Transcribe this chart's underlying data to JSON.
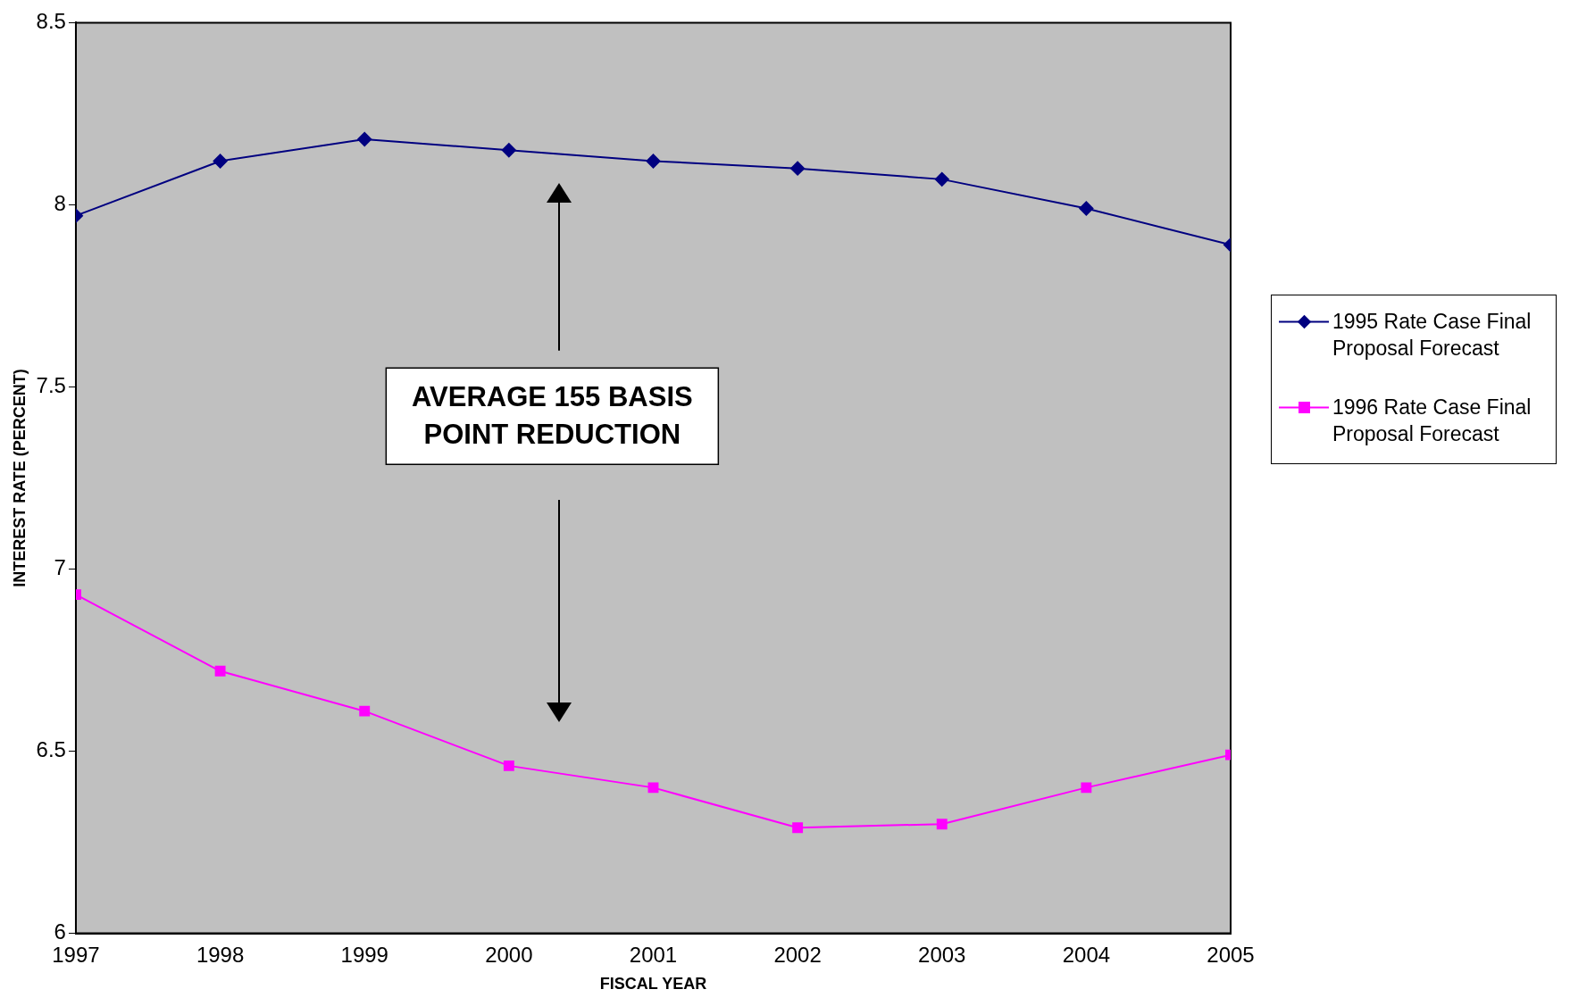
{
  "chart_data": {
    "type": "line",
    "xlabel": "FISCAL YEAR",
    "ylabel": "INTEREST RATE (PERCENT)",
    "x": [
      1997,
      1998,
      1999,
      2000,
      2001,
      2002,
      2003,
      2004,
      2005
    ],
    "series": [
      {
        "name": "1995 Rate Case Final Proposal Forecast",
        "color": "#000080",
        "marker": "diamond",
        "values": [
          7.97,
          8.12,
          8.18,
          8.15,
          8.12,
          8.1,
          8.07,
          7.99,
          7.89
        ]
      },
      {
        "name": "1996 Rate Case Final Proposal Forecast",
        "color": "#ff00ff",
        "marker": "square",
        "values": [
          6.93,
          6.72,
          6.61,
          6.46,
          6.4,
          6.29,
          6.3,
          6.4,
          6.49
        ]
      }
    ],
    "xlim": [
      1997,
      2005
    ],
    "xticks": [
      1997,
      1998,
      1999,
      2000,
      2001,
      2002,
      2003,
      2004,
      2005
    ],
    "ylim": [
      6,
      8.5
    ],
    "yticks": [
      6,
      6.5,
      7,
      7.5,
      8,
      8.5
    ],
    "grid": false,
    "legend": "right",
    "line_style": "solid",
    "annotations": [
      "AVERAGE 155 BASIS POINT REDUCTION"
    ]
  }
}
